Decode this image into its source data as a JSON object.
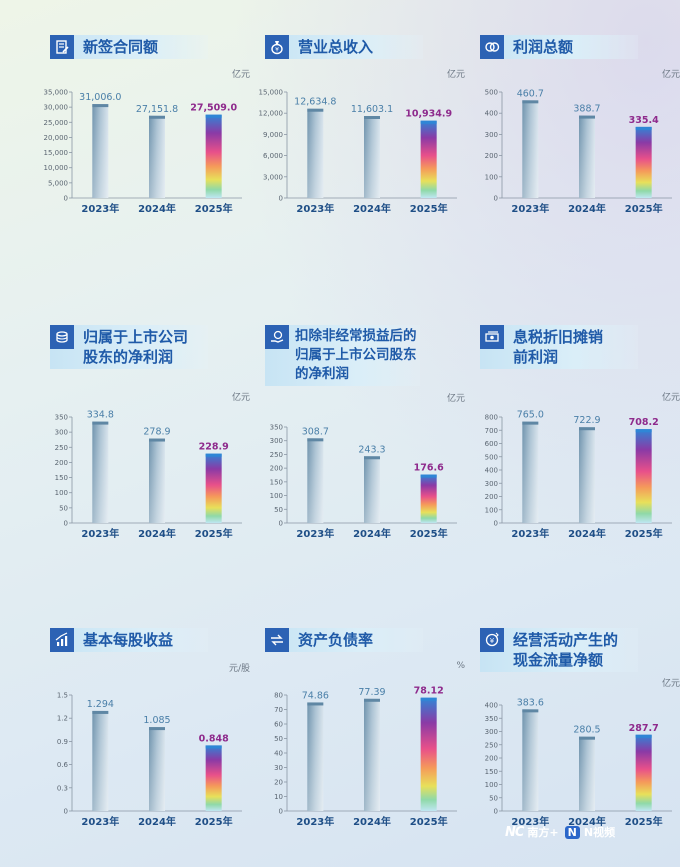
{
  "colors": {
    "title": "#1f5aa8",
    "icon_bg": "#2c62b4",
    "value_past": "#4a7fa8",
    "value_current": "#8e2a8c",
    "axis": "#8a96a4"
  },
  "watermark": {
    "mark": "NC",
    "brand": "南方+",
    "video": "N视频"
  },
  "charts": [
    {
      "icon": "contract-icon",
      "title": "新签合同额",
      "unit": "亿元"
    },
    {
      "icon": "money-bag-icon",
      "title": "营业总收入",
      "unit": "亿元"
    },
    {
      "icon": "coins-icon",
      "title": "利润总额",
      "unit": "亿元"
    },
    {
      "icon": "coin-stack-icon",
      "title": "归属于上市公司\n股东的净利润",
      "unit": "亿元"
    },
    {
      "icon": "hand-coin-icon",
      "title": "扣除非经常损益后的\n归属于上市公司股东\n的净利润",
      "unit": "亿元"
    },
    {
      "icon": "cash-icon",
      "title": "息税折旧摊销\n前利润",
      "unit": "亿元"
    },
    {
      "icon": "bar-growth-icon",
      "title": "基本每股收益",
      "unit": "元/股"
    },
    {
      "icon": "exchange-icon",
      "title": "资产负债率",
      "unit": "%"
    },
    {
      "icon": "cashflow-icon",
      "title": "经营活动产生的\n现金流量净额",
      "unit": "亿元"
    }
  ],
  "chart_data": [
    {
      "type": "bar",
      "title": "新签合同额",
      "ylabel": "亿元",
      "categories": [
        "2023年",
        "2024年",
        "2025年"
      ],
      "values": [
        31006.0,
        27151.8,
        27509.0
      ],
      "labels": [
        "31,006.0",
        "27,151.8",
        "27,509.0"
      ],
      "ylim": [
        0,
        35000
      ],
      "yticks": [
        0,
        5000,
        10000,
        15000,
        20000,
        25000,
        30000,
        35000
      ],
      "ytick_labels": [
        "0",
        "5,000",
        "10,000",
        "15,000",
        "20,000",
        "25,000",
        "30,000",
        "35,000"
      ]
    },
    {
      "type": "bar",
      "title": "营业总收入",
      "ylabel": "亿元",
      "categories": [
        "2023年",
        "2024年",
        "2025年"
      ],
      "values": [
        12634.8,
        11603.1,
        10934.9
      ],
      "labels": [
        "12,634.8",
        "11,603.1",
        "10,934.9"
      ],
      "ylim": [
        0,
        15000
      ],
      "yticks": [
        0,
        3000,
        6000,
        9000,
        12000,
        15000
      ],
      "ytick_labels": [
        "0",
        "3,000",
        "6,000",
        "9,000",
        "12,000",
        "15,000"
      ]
    },
    {
      "type": "bar",
      "title": "利润总额",
      "ylabel": "亿元",
      "categories": [
        "2023年",
        "2024年",
        "2025年"
      ],
      "values": [
        460.7,
        388.7,
        335.4
      ],
      "labels": [
        "460.7",
        "388.7",
        "335.4"
      ],
      "ylim": [
        0,
        500
      ],
      "yticks": [
        0,
        100,
        200,
        300,
        400,
        500
      ],
      "ytick_labels": [
        "0",
        "100",
        "200",
        "300",
        "400",
        "500"
      ]
    },
    {
      "type": "bar",
      "title": "归属于上市公司股东的净利润",
      "ylabel": "亿元",
      "categories": [
        "2023年",
        "2024年",
        "2025年"
      ],
      "values": [
        334.8,
        278.9,
        228.9
      ],
      "labels": [
        "334.8",
        "278.9",
        "228.9"
      ],
      "ylim": [
        0,
        350
      ],
      "yticks": [
        0,
        50,
        100,
        150,
        200,
        250,
        300,
        350
      ],
      "ytick_labels": [
        "0",
        "50",
        "100",
        "150",
        "200",
        "250",
        "300",
        "350"
      ]
    },
    {
      "type": "bar",
      "title": "扣除非经常损益后的归属于上市公司股东的净利润",
      "ylabel": "亿元",
      "categories": [
        "2023年",
        "2024年",
        "2025年"
      ],
      "values": [
        308.7,
        243.3,
        176.6
      ],
      "labels": [
        "308.7",
        "243.3",
        "176.6"
      ],
      "ylim": [
        0,
        350
      ],
      "yticks": [
        0,
        50,
        100,
        150,
        200,
        250,
        300,
        350
      ],
      "ytick_labels": [
        "0",
        "50",
        "100",
        "150",
        "200",
        "250",
        "300",
        "350"
      ]
    },
    {
      "type": "bar",
      "title": "息税折旧摊销前利润",
      "ylabel": "亿元",
      "categories": [
        "2023年",
        "2024年",
        "2025年"
      ],
      "values": [
        765.0,
        722.9,
        708.2
      ],
      "labels": [
        "765.0",
        "722.9",
        "708.2"
      ],
      "ylim": [
        0,
        800
      ],
      "yticks": [
        0,
        100,
        200,
        300,
        400,
        500,
        600,
        700,
        800
      ],
      "ytick_labels": [
        "0",
        "100",
        "200",
        "300",
        "400",
        "500",
        "600",
        "700",
        "800"
      ]
    },
    {
      "type": "bar",
      "title": "基本每股收益",
      "ylabel": "元/股",
      "categories": [
        "2023年",
        "2024年",
        "2025年"
      ],
      "values": [
        1.294,
        1.085,
        0.848
      ],
      "labels": [
        "1.294",
        "1.085",
        "0.848"
      ],
      "ylim": [
        0,
        1.5
      ],
      "yticks": [
        0,
        0.3,
        0.6,
        0.9,
        1.2,
        1.5
      ],
      "ytick_labels": [
        "0",
        "0.3",
        "0.6",
        "0.9",
        "1.2",
        "1.5"
      ]
    },
    {
      "type": "bar",
      "title": "资产负债率",
      "ylabel": "%",
      "categories": [
        "2023年",
        "2024年",
        "2025年"
      ],
      "values": [
        74.86,
        77.39,
        78.12
      ],
      "labels": [
        "74.86",
        "77.39",
        "78.12"
      ],
      "ylim": [
        0,
        80
      ],
      "yticks": [
        0,
        10,
        20,
        30,
        40,
        50,
        60,
        70,
        80
      ],
      "ytick_labels": [
        "0",
        "10",
        "20",
        "30",
        "40",
        "50",
        "60",
        "70",
        "80"
      ]
    },
    {
      "type": "bar",
      "title": "经营活动产生的现金流量净额",
      "ylabel": "亿元",
      "categories": [
        "2023年",
        "2024年",
        "2025年"
      ],
      "values": [
        383.6,
        280.5,
        287.7
      ],
      "labels": [
        "383.6",
        "280.5",
        "287.7"
      ],
      "ylim": [
        0,
        400
      ],
      "yticks": [
        0,
        50,
        100,
        150,
        200,
        250,
        300,
        350,
        400
      ],
      "ytick_labels": [
        "0",
        "50",
        "100",
        "150",
        "200",
        "250",
        "300",
        "350",
        "400"
      ]
    }
  ]
}
